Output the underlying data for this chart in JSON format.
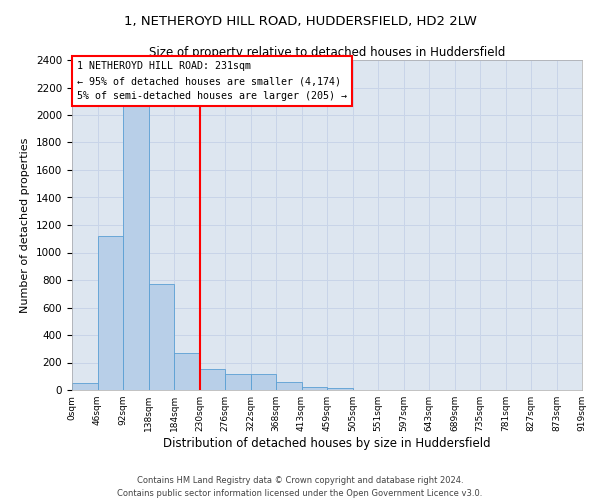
{
  "title": "1, NETHEROYD HILL ROAD, HUDDERSFIELD, HD2 2LW",
  "subtitle": "Size of property relative to detached houses in Huddersfield",
  "xlabel": "Distribution of detached houses by size in Huddersfield",
  "ylabel": "Number of detached properties",
  "footer_line1": "Contains HM Land Registry data © Crown copyright and database right 2024.",
  "footer_line2": "Contains public sector information licensed under the Open Government Licence v3.0.",
  "bin_labels": [
    "0sqm",
    "46sqm",
    "92sqm",
    "138sqm",
    "184sqm",
    "230sqm",
    "276sqm",
    "322sqm",
    "368sqm",
    "413sqm",
    "459sqm",
    "505sqm",
    "551sqm",
    "597sqm",
    "643sqm",
    "689sqm",
    "735sqm",
    "781sqm",
    "827sqm",
    "873sqm",
    "919sqm"
  ],
  "bar_values": [
    50,
    1120,
    2200,
    770,
    270,
    155,
    120,
    115,
    55,
    25,
    15,
    0,
    0,
    0,
    0,
    0,
    0,
    0,
    0,
    0
  ],
  "bar_color": "#b8cfe8",
  "bar_edge_color": "#5a9fd4",
  "annotation_text_line1": "1 NETHEROYD HILL ROAD: 231sqm",
  "annotation_text_line2": "← 95% of detached houses are smaller (4,174)",
  "annotation_text_line3": "5% of semi-detached houses are larger (205) →",
  "ylim": [
    0,
    2400
  ],
  "yticks": [
    0,
    200,
    400,
    600,
    800,
    1000,
    1200,
    1400,
    1600,
    1800,
    2000,
    2200,
    2400
  ],
  "grid_color": "#c8d4e8",
  "background_color": "#dde6f0",
  "annotation_box_color": "white",
  "annotation_box_edge": "red",
  "vline_color": "red",
  "vline_x_bin": 5.02
}
